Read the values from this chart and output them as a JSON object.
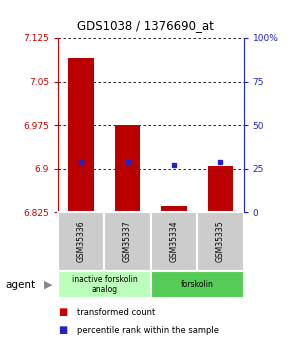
{
  "title": "GDS1038 / 1376690_at",
  "samples": [
    "GSM35336",
    "GSM35337",
    "GSM35334",
    "GSM35335"
  ],
  "ymin": 6.825,
  "ymax": 7.125,
  "yticks": [
    6.825,
    6.9,
    6.975,
    7.05,
    7.125
  ],
  "y2ticks": [
    0,
    25,
    50,
    75,
    100
  ],
  "red_bar_tops": [
    7.09,
    6.975,
    6.835,
    6.905
  ],
  "blue_markers": [
    6.912,
    6.912,
    6.906,
    6.912
  ],
  "bar_base": 6.825,
  "groups": [
    {
      "label": "inactive forskolin\nanalog",
      "samples": [
        0,
        1
      ],
      "color": "#bbffbb"
    },
    {
      "label": "forskolin",
      "samples": [
        2,
        3
      ],
      "color": "#55cc55"
    }
  ],
  "agent_label": "agent",
  "legend_items": [
    {
      "color": "#cc0000",
      "label": "transformed count"
    },
    {
      "color": "#2222cc",
      "label": "percentile rank within the sample"
    }
  ],
  "bar_width": 0.55,
  "red_color": "#bb0000",
  "blue_color": "#2222cc",
  "left_axis_color": "#cc0000",
  "right_axis_color": "#2222cc"
}
